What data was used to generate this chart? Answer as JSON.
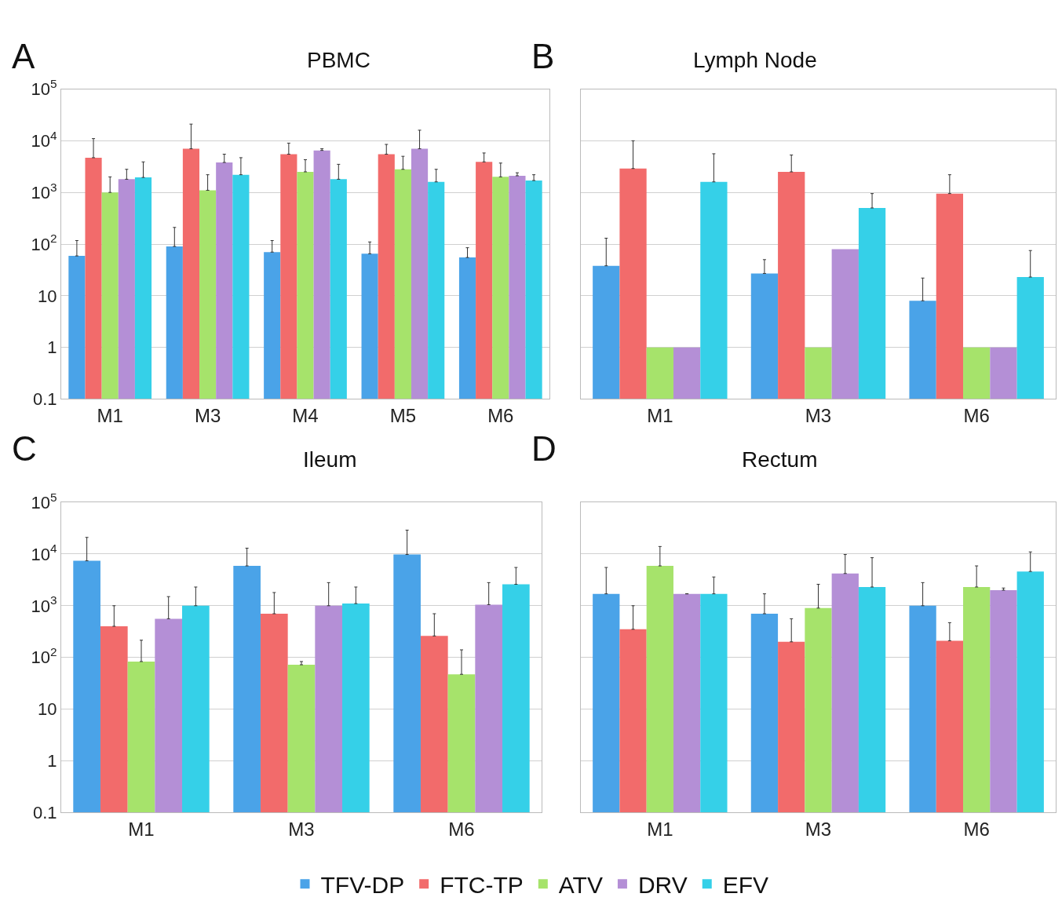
{
  "chart_data": [
    {
      "type": "bar",
      "title": "PBMC",
      "annotations": [
        "A"
      ],
      "categories": [
        "M1",
        "M3",
        "M4",
        "M5",
        "M6"
      ],
      "log": "y",
      "grid": "y",
      "legend": "bottom",
      "ylim": [
        0.1,
        100000
      ],
      "yticks": [
        0.1,
        1,
        10,
        {
          "value": 100,
          "label": "10$^{2}$"
        },
        {
          "value": 1000,
          "label": "10$^{3}$"
        },
        {
          "value": 10000,
          "label": "10$^{4}$"
        },
        {
          "value": 100000,
          "label": "10$^{5}$"
        }
      ],
      "series": [
        {
          "name": "TFV-DP",
          "color": "#4aa3e8",
          "values": [
            59,
            90,
            70,
            65,
            55
          ],
          "errors": [
            [
              59,
              117
            ],
            [
              90,
              210
            ],
            [
              70,
              117
            ],
            [
              65,
              110
            ],
            [
              55,
              85
            ]
          ]
        },
        {
          "name": "FTC-TP",
          "color": "#f26b6b",
          "values": [
            4700,
            7000,
            5500,
            5500,
            3900
          ],
          "errors": [
            [
              4700,
              11000
            ],
            [
              7000,
              21000
            ],
            [
              5500,
              9000
            ],
            [
              5500,
              8500
            ],
            [
              3900,
              5800
            ]
          ]
        },
        {
          "name": "ATV",
          "color": "#a6e36b",
          "values": [
            1000,
            1100,
            2500,
            2800,
            2000
          ],
          "errors": [
            [
              1000,
              2000
            ],
            [
              1100,
              2200
            ],
            [
              2500,
              4300
            ],
            [
              2800,
              5000
            ],
            [
              2000,
              3700
            ]
          ]
        },
        {
          "name": "DRV",
          "color": "#b48fd6",
          "values": [
            1800,
            3800,
            6500,
            7000,
            2100
          ],
          "errors": [
            [
              1800,
              2800
            ],
            [
              3800,
              5500
            ],
            [
              6500,
              7000
            ],
            [
              7000,
              16000
            ],
            [
              2100,
              2400
            ]
          ]
        },
        {
          "name": "EFV",
          "color": "#35d0e8",
          "values": [
            1950,
            2200,
            1800,
            1600,
            1700
          ],
          "errors": [
            [
              1950,
              3900
            ],
            [
              2200,
              4700
            ],
            [
              1800,
              3500
            ],
            [
              1600,
              2800
            ],
            [
              1700,
              2200
            ]
          ]
        }
      ]
    },
    {
      "type": "bar",
      "title": "Lymph Node",
      "annotations": [
        "B"
      ],
      "categories": [
        "M1",
        "M3",
        "M6"
      ],
      "log": "y",
      "grid": "y",
      "legend": false,
      "tick_labels": "x",
      "ylim": [
        0.1,
        100000
      ],
      "yticks": [
        0.1,
        1,
        10,
        {
          "value": 100,
          "label": "10$^{2}$"
        },
        {
          "value": 1000,
          "label": "10$^{3}$"
        },
        {
          "value": 10000,
          "label": "10$^{4}$"
        },
        {
          "value": 100000,
          "label": "10$^{5}$"
        }
      ],
      "series": [
        {
          "color": "#4aa3e8",
          "values": [
            38,
            27,
            8
          ],
          "errors": [
            [
              38,
              130
            ],
            [
              27,
              50
            ],
            [
              8,
              22
            ]
          ]
        },
        {
          "color": "#f26b6b",
          "values": [
            2900,
            2500,
            950
          ],
          "errors": [
            [
              2900,
              10000
            ],
            [
              2500,
              5300
            ],
            [
              950,
              2200
            ]
          ]
        },
        {
          "color": "#a6e36b",
          "values": [
            1,
            1,
            1
          ],
          "errors": [
            null,
            null,
            null
          ]
        },
        {
          "color": "#b48fd6",
          "values": [
            1,
            80,
            1
          ],
          "errors": [
            null,
            null,
            null
          ]
        },
        {
          "color": "#35d0e8",
          "values": [
            1600,
            500,
            23
          ],
          "errors": [
            [
              1600,
              5600
            ],
            [
              500,
              950
            ],
            [
              23,
              75
            ]
          ]
        }
      ]
    },
    {
      "type": "bar",
      "title": "Ileum",
      "annotations": [
        "C"
      ],
      "categories": [
        "M1",
        "M3",
        "M6"
      ],
      "log": "y",
      "grid": "y",
      "legend": false,
      "ylim": [
        0.1,
        100000
      ],
      "yticks": [
        0.1,
        1,
        10,
        {
          "value": 100,
          "label": "10$^{2}$"
        },
        {
          "value": 1000,
          "label": "10$^{3}$"
        },
        {
          "value": 10000,
          "label": "10$^{4}$"
        },
        {
          "value": 100000,
          "label": "10$^{5}$"
        }
      ],
      "series": [
        {
          "color": "#4aa3e8",
          "values": [
            7400,
            5900,
            9800
          ],
          "errors": [
            [
              7400,
              21000
            ],
            [
              5900,
              13000
            ],
            [
              9800,
              29000
            ]
          ]
        },
        {
          "color": "#f26b6b",
          "values": [
            400,
            700,
            260
          ],
          "errors": [
            [
              400,
              1000
            ],
            [
              700,
              1800
            ],
            [
              260,
              700
            ]
          ]
        },
        {
          "color": "#a6e36b",
          "values": [
            83,
            72,
            47
          ],
          "errors": [
            [
              83,
              215
            ],
            [
              72,
              83
            ],
            [
              47,
              140
            ]
          ]
        },
        {
          "color": "#b48fd6",
          "values": [
            560,
            1000,
            1050
          ],
          "errors": [
            [
              560,
              1500
            ],
            [
              1000,
              2800
            ],
            [
              1050,
              2800
            ]
          ]
        },
        {
          "color": "#35d0e8",
          "values": [
            1000,
            1100,
            2600
          ],
          "errors": [
            [
              1000,
              2300
            ],
            [
              1100,
              2300
            ],
            [
              2600,
              5500
            ]
          ]
        }
      ]
    },
    {
      "type": "bar",
      "title": "Rectum",
      "annotations": [
        "D"
      ],
      "categories": [
        "M1",
        "M3",
        "M6"
      ],
      "log": "y",
      "grid": "y",
      "legend": false,
      "tick_labels": "x",
      "ylim": [
        0.1,
        100000
      ],
      "yticks": [
        0.1,
        1,
        10,
        {
          "value": 100,
          "label": "10$^{2}$"
        },
        {
          "value": 1000,
          "label": "10$^{3}$"
        },
        {
          "value": 10000,
          "label": "10$^{4}$"
        },
        {
          "value": 100000,
          "label": "10$^{5}$"
        }
      ],
      "series": [
        {
          "color": "#4aa3e8",
          "values": [
            1700,
            700,
            1000
          ],
          "errors": [
            [
              1700,
              5500
            ],
            [
              700,
              1700
            ],
            [
              1000,
              2800
            ]
          ]
        },
        {
          "color": "#f26b6b",
          "values": [
            350,
            200,
            210
          ],
          "errors": [
            [
              350,
              1000
            ],
            [
              200,
              560
            ],
            [
              210,
              470
            ]
          ]
        },
        {
          "color": "#a6e36b",
          "values": [
            5900,
            900,
            2300
          ],
          "errors": [
            [
              5900,
              14000
            ],
            [
              900,
              2600
            ],
            [
              2300,
              5900
            ]
          ]
        },
        {
          "color": "#b48fd6",
          "values": [
            1700,
            4200,
            2000
          ],
          "errors": [
            null,
            [
              4200,
              9800
            ],
            [
              2000,
              2200
            ]
          ]
        },
        {
          "color": "#35d0e8",
          "values": [
            1700,
            2300,
            4600
          ],
          "errors": [
            [
              1700,
              3600
            ],
            [
              2300,
              8500
            ],
            [
              4600,
              11000
            ]
          ]
        }
      ]
    }
  ]
}
